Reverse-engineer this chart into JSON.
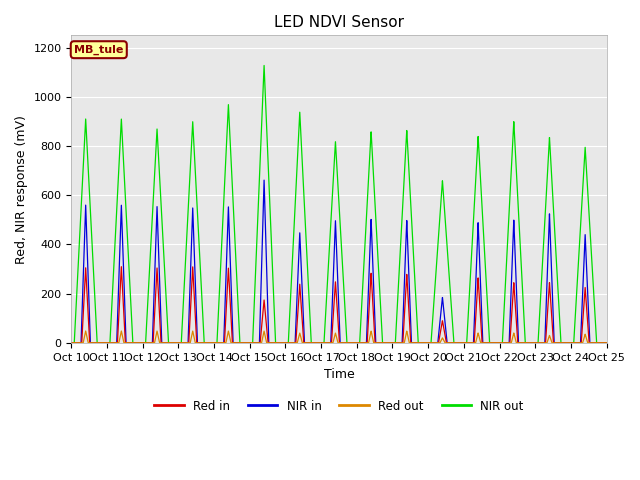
{
  "title": "LED NDVI Sensor",
  "xlabel": "Time",
  "ylabel": "Red, NIR response (mV)",
  "annotation_label": "MB_tule",
  "legend_entries": [
    "Red in",
    "NIR in",
    "Red out",
    "NIR out"
  ],
  "line_colors": [
    "#dd0000",
    "#0000dd",
    "#dd8800",
    "#00dd00"
  ],
  "bg_color": "#e8e8e8",
  "ylim": [
    0,
    1250
  ],
  "yticks": [
    0,
    200,
    400,
    600,
    800,
    1000,
    1200
  ],
  "x_tick_labels": [
    "Oct 10",
    "Oct 11",
    "Oct 12",
    "Oct 13",
    "Oct 14",
    "Oct 15",
    "Oct 16",
    "Oct 17",
    "Oct 18",
    "Oct 19",
    "Oct 20",
    "Oct 21",
    "Oct 22",
    "Oct 23",
    "Oct 24",
    "Oct 25"
  ],
  "title_fontsize": 11,
  "axis_label_fontsize": 9,
  "tick_fontsize": 8
}
